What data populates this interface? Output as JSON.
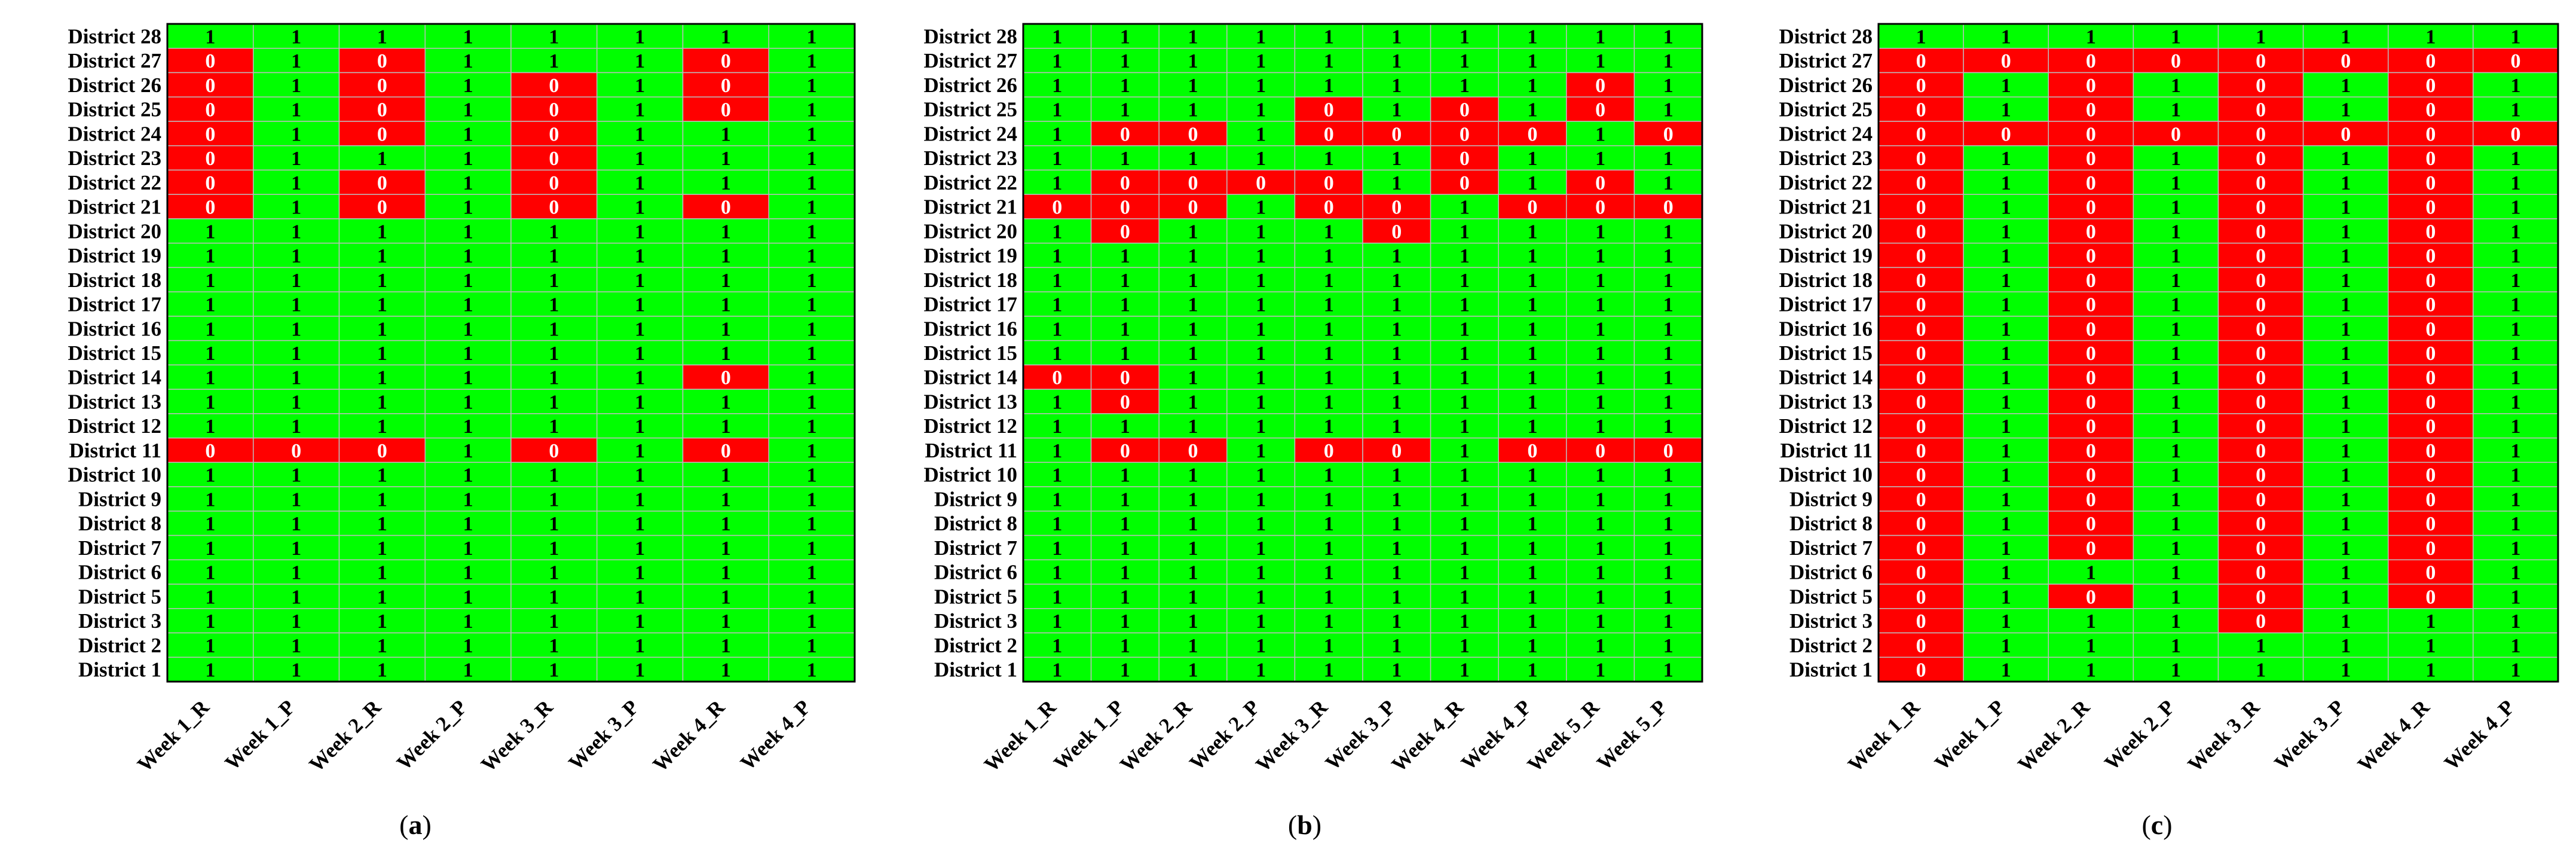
{
  "colors": {
    "red": "#ff0000",
    "green": "#00ff00",
    "grid": "#bdbdbd",
    "one_text": "#000000",
    "zero_text": "#ffffff"
  },
  "chart_data": [
    {
      "type": "heatmap",
      "panel_label": "(a)",
      "rows": [
        "District 28",
        "District 27",
        "District 26",
        "District 25",
        "District 24",
        "District 23",
        "District 22",
        "District 21",
        "District 20",
        "District 19",
        "District 18",
        "District 17",
        "District 16",
        "District 15",
        "District 14",
        "District 13",
        "District 12",
        "District 11",
        "District 10",
        "District 9",
        "District 8",
        "District 7",
        "District 6",
        "District 5",
        "District 3",
        "District 2",
        "District 1"
      ],
      "columns": [
        "Week 1_R",
        "Week 1_P",
        "Week 2_R",
        "Week 2_P",
        "Week 3_R",
        "Week 3_P",
        "Week 4_R",
        "Week 4_P"
      ],
      "legend_meaning": {
        "0": "red cell",
        "1": "green cell"
      },
      "values": [
        [
          1,
          1,
          1,
          1,
          1,
          1,
          1,
          1
        ],
        [
          0,
          1,
          0,
          1,
          1,
          1,
          0,
          1
        ],
        [
          0,
          1,
          0,
          1,
          0,
          1,
          0,
          1
        ],
        [
          0,
          1,
          0,
          1,
          0,
          1,
          0,
          1
        ],
        [
          0,
          1,
          0,
          1,
          0,
          1,
          1,
          1
        ],
        [
          0,
          1,
          1,
          1,
          0,
          1,
          1,
          1
        ],
        [
          0,
          1,
          0,
          1,
          0,
          1,
          1,
          1
        ],
        [
          0,
          1,
          0,
          1,
          0,
          1,
          0,
          1
        ],
        [
          1,
          1,
          1,
          1,
          1,
          1,
          1,
          1
        ],
        [
          1,
          1,
          1,
          1,
          1,
          1,
          1,
          1
        ],
        [
          1,
          1,
          1,
          1,
          1,
          1,
          1,
          1
        ],
        [
          1,
          1,
          1,
          1,
          1,
          1,
          1,
          1
        ],
        [
          1,
          1,
          1,
          1,
          1,
          1,
          1,
          1
        ],
        [
          1,
          1,
          1,
          1,
          1,
          1,
          1,
          1
        ],
        [
          1,
          1,
          1,
          1,
          1,
          1,
          0,
          1
        ],
        [
          1,
          1,
          1,
          1,
          1,
          1,
          1,
          1
        ],
        [
          1,
          1,
          1,
          1,
          1,
          1,
          1,
          1
        ],
        [
          0,
          0,
          0,
          1,
          0,
          1,
          0,
          1
        ],
        [
          1,
          1,
          1,
          1,
          1,
          1,
          1,
          1
        ],
        [
          1,
          1,
          1,
          1,
          1,
          1,
          1,
          1
        ],
        [
          1,
          1,
          1,
          1,
          1,
          1,
          1,
          1
        ],
        [
          1,
          1,
          1,
          1,
          1,
          1,
          1,
          1
        ],
        [
          1,
          1,
          1,
          1,
          1,
          1,
          1,
          1
        ],
        [
          1,
          1,
          1,
          1,
          1,
          1,
          1,
          1
        ],
        [
          1,
          1,
          1,
          1,
          1,
          1,
          1,
          1
        ],
        [
          1,
          1,
          1,
          1,
          1,
          1,
          1,
          1
        ],
        [
          1,
          1,
          1,
          1,
          1,
          1,
          1,
          1
        ]
      ]
    },
    {
      "type": "heatmap",
      "panel_label": "(b)",
      "rows": [
        "District 28",
        "District 27",
        "District 26",
        "District 25",
        "District 24",
        "District 23",
        "District 22",
        "District 21",
        "District 20",
        "District 19",
        "District 18",
        "District 17",
        "District 16",
        "District 15",
        "District 14",
        "District 13",
        "District 12",
        "District 11",
        "District 10",
        "District 9",
        "District 8",
        "District 7",
        "District 6",
        "District 5",
        "District 3",
        "District 2",
        "District 1"
      ],
      "columns": [
        "Week 1_R",
        "Week 1_P",
        "Week 2_R",
        "Week 2_P",
        "Week 3_R",
        "Week 3_P",
        "Week 4_R",
        "Week 4_P",
        "Week 5_R",
        "Week 5_P"
      ],
      "legend_meaning": {
        "0": "red cell",
        "1": "green cell"
      },
      "values": [
        [
          1,
          1,
          1,
          1,
          1,
          1,
          1,
          1,
          1,
          1
        ],
        [
          1,
          1,
          1,
          1,
          1,
          1,
          1,
          1,
          1,
          1
        ],
        [
          1,
          1,
          1,
          1,
          1,
          1,
          1,
          1,
          0,
          1
        ],
        [
          1,
          1,
          1,
          1,
          0,
          1,
          0,
          1,
          0,
          1
        ],
        [
          1,
          0,
          0,
          1,
          0,
          0,
          0,
          0,
          1,
          0
        ],
        [
          1,
          1,
          1,
          1,
          1,
          1,
          0,
          1,
          1,
          1
        ],
        [
          1,
          0,
          0,
          0,
          0,
          1,
          0,
          1,
          0,
          1
        ],
        [
          0,
          0,
          0,
          1,
          0,
          0,
          1,
          0,
          0,
          0
        ],
        [
          1,
          0,
          1,
          1,
          1,
          0,
          1,
          1,
          1,
          1
        ],
        [
          1,
          1,
          1,
          1,
          1,
          1,
          1,
          1,
          1,
          1
        ],
        [
          1,
          1,
          1,
          1,
          1,
          1,
          1,
          1,
          1,
          1
        ],
        [
          1,
          1,
          1,
          1,
          1,
          1,
          1,
          1,
          1,
          1
        ],
        [
          1,
          1,
          1,
          1,
          1,
          1,
          1,
          1,
          1,
          1
        ],
        [
          1,
          1,
          1,
          1,
          1,
          1,
          1,
          1,
          1,
          1
        ],
        [
          0,
          0,
          1,
          1,
          1,
          1,
          1,
          1,
          1,
          1
        ],
        [
          1,
          0,
          1,
          1,
          1,
          1,
          1,
          1,
          1,
          1
        ],
        [
          1,
          1,
          1,
          1,
          1,
          1,
          1,
          1,
          1,
          1
        ],
        [
          1,
          0,
          0,
          1,
          0,
          0,
          1,
          0,
          0,
          0
        ],
        [
          1,
          1,
          1,
          1,
          1,
          1,
          1,
          1,
          1,
          1
        ],
        [
          1,
          1,
          1,
          1,
          1,
          1,
          1,
          1,
          1,
          1
        ],
        [
          1,
          1,
          1,
          1,
          1,
          1,
          1,
          1,
          1,
          1
        ],
        [
          1,
          1,
          1,
          1,
          1,
          1,
          1,
          1,
          1,
          1
        ],
        [
          1,
          1,
          1,
          1,
          1,
          1,
          1,
          1,
          1,
          1
        ],
        [
          1,
          1,
          1,
          1,
          1,
          1,
          1,
          1,
          1,
          1
        ],
        [
          1,
          1,
          1,
          1,
          1,
          1,
          1,
          1,
          1,
          1
        ],
        [
          1,
          1,
          1,
          1,
          1,
          1,
          1,
          1,
          1,
          1
        ],
        [
          1,
          1,
          1,
          1,
          1,
          1,
          1,
          1,
          1,
          1
        ]
      ]
    },
    {
      "type": "heatmap",
      "panel_label": "(c)",
      "rows": [
        "District 28",
        "District 27",
        "District 26",
        "District 25",
        "District 24",
        "District 23",
        "District 22",
        "District 21",
        "District 20",
        "District 19",
        "District 18",
        "District 17",
        "District 16",
        "District 15",
        "District 14",
        "District 13",
        "District 12",
        "District 11",
        "District 10",
        "District 9",
        "District 8",
        "District 7",
        "District 6",
        "District 5",
        "District 3",
        "District 2",
        "District 1"
      ],
      "columns": [
        "Week 1_R",
        "Week 1_P",
        "Week 2_R",
        "Week 2_P",
        "Week 3_R",
        "Week 3_P",
        "Week 4_R",
        "Week 4_P"
      ],
      "legend_meaning": {
        "0": "red cell",
        "1": "green cell"
      },
      "values": [
        [
          1,
          1,
          1,
          1,
          1,
          1,
          1,
          1
        ],
        [
          0,
          0,
          0,
          0,
          0,
          0,
          0,
          0
        ],
        [
          0,
          1,
          0,
          1,
          0,
          1,
          0,
          1
        ],
        [
          0,
          1,
          0,
          1,
          0,
          1,
          0,
          1
        ],
        [
          0,
          0,
          0,
          0,
          0,
          0,
          0,
          0
        ],
        [
          0,
          1,
          0,
          1,
          0,
          1,
          0,
          1
        ],
        [
          0,
          1,
          0,
          1,
          0,
          1,
          0,
          1
        ],
        [
          0,
          1,
          0,
          1,
          0,
          1,
          0,
          1
        ],
        [
          0,
          1,
          0,
          1,
          0,
          1,
          0,
          1
        ],
        [
          0,
          1,
          0,
          1,
          0,
          1,
          0,
          1
        ],
        [
          0,
          1,
          0,
          1,
          0,
          1,
          0,
          1
        ],
        [
          0,
          1,
          0,
          1,
          0,
          1,
          0,
          1
        ],
        [
          0,
          1,
          0,
          1,
          0,
          1,
          0,
          1
        ],
        [
          0,
          1,
          0,
          1,
          0,
          1,
          0,
          1
        ],
        [
          0,
          1,
          0,
          1,
          0,
          1,
          0,
          1
        ],
        [
          0,
          1,
          0,
          1,
          0,
          1,
          0,
          1
        ],
        [
          0,
          1,
          0,
          1,
          0,
          1,
          0,
          1
        ],
        [
          0,
          1,
          0,
          1,
          0,
          1,
          0,
          1
        ],
        [
          0,
          1,
          0,
          1,
          0,
          1,
          0,
          1
        ],
        [
          0,
          1,
          0,
          1,
          0,
          1,
          0,
          1
        ],
        [
          0,
          1,
          0,
          1,
          0,
          1,
          0,
          1
        ],
        [
          0,
          1,
          0,
          1,
          0,
          1,
          0,
          1
        ],
        [
          0,
          1,
          1,
          1,
          0,
          1,
          0,
          1
        ],
        [
          0,
          1,
          0,
          1,
          0,
          1,
          0,
          1
        ],
        [
          0,
          1,
          1,
          1,
          0,
          1,
          1,
          1
        ],
        [
          0,
          1,
          1,
          1,
          1,
          1,
          1,
          1
        ],
        [
          0,
          1,
          1,
          1,
          1,
          1,
          1,
          1
        ]
      ]
    }
  ]
}
